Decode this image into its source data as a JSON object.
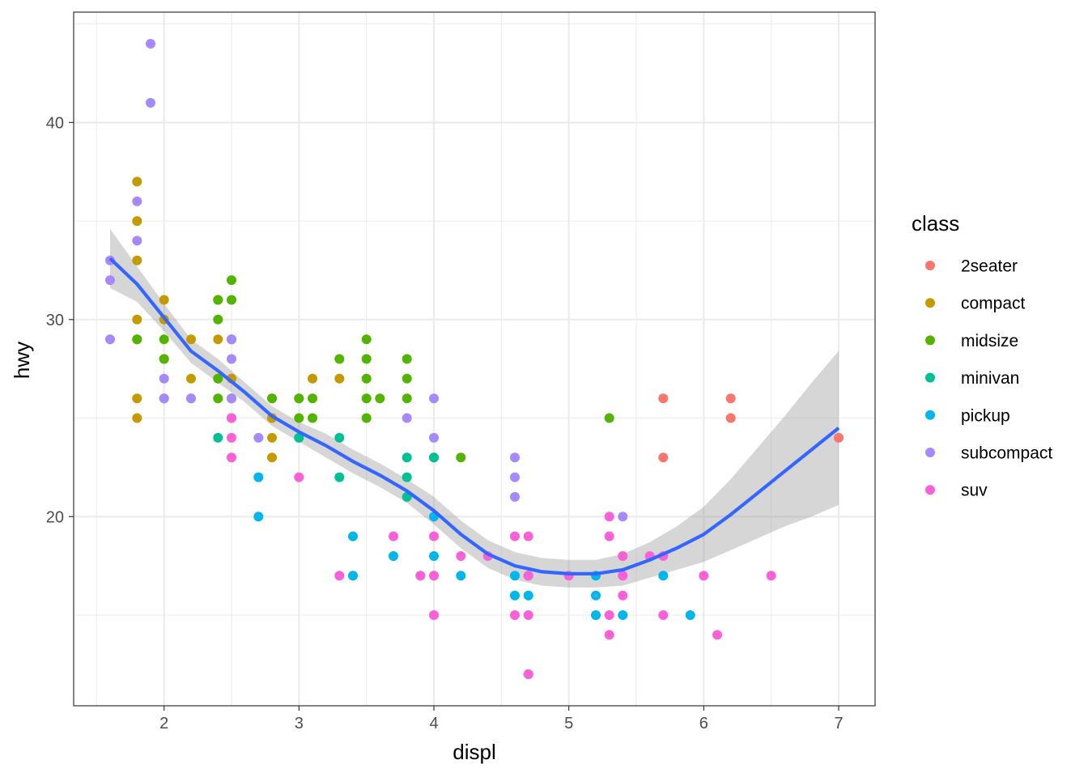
{
  "chart_data": {
    "type": "scatter",
    "xlabel": "displ",
    "ylabel": "hwy",
    "xlim": [
      1.33,
      7.27
    ],
    "ylim": [
      10.4,
      45.6
    ],
    "x_ticks": [
      2,
      3,
      4,
      5,
      6,
      7
    ],
    "y_ticks": [
      20,
      30,
      40
    ],
    "grid": true,
    "legend": {
      "title": "class",
      "position": "right",
      "entries": [
        {
          "name": "2seater",
          "color": "#F8766D"
        },
        {
          "name": "compact",
          "color": "#C49A00"
        },
        {
          "name": "midsize",
          "color": "#53B400"
        },
        {
          "name": "minivan",
          "color": "#00C094"
        },
        {
          "name": "pickup",
          "color": "#00B6EB"
        },
        {
          "name": "subcompact",
          "color": "#A58AFF"
        },
        {
          "name": "suv",
          "color": "#FB61D7"
        }
      ]
    },
    "points": [
      {
        "x": 1.8,
        "y": 37,
        "c": "compact"
      },
      {
        "x": 1.8,
        "y": 35,
        "c": "compact"
      },
      {
        "x": 1.8,
        "y": 33,
        "c": "compact"
      },
      {
        "x": 1.8,
        "y": 30,
        "c": "compact"
      },
      {
        "x": 1.8,
        "y": 29,
        "c": "compact"
      },
      {
        "x": 1.8,
        "y": 26,
        "c": "compact"
      },
      {
        "x": 1.8,
        "y": 25,
        "c": "compact"
      },
      {
        "x": 2.0,
        "y": 31,
        "c": "compact"
      },
      {
        "x": 2.0,
        "y": 30,
        "c": "compact"
      },
      {
        "x": 2.0,
        "y": 28,
        "c": "compact"
      },
      {
        "x": 2.0,
        "y": 26,
        "c": "compact"
      },
      {
        "x": 2.2,
        "y": 29,
        "c": "compact"
      },
      {
        "x": 2.2,
        "y": 27,
        "c": "compact"
      },
      {
        "x": 2.2,
        "y": 26,
        "c": "compact"
      },
      {
        "x": 2.4,
        "y": 31,
        "c": "compact"
      },
      {
        "x": 2.4,
        "y": 29,
        "c": "compact"
      },
      {
        "x": 2.4,
        "y": 27,
        "c": "compact"
      },
      {
        "x": 2.5,
        "y": 29,
        "c": "compact"
      },
      {
        "x": 2.5,
        "y": 27,
        "c": "compact"
      },
      {
        "x": 2.5,
        "y": 26,
        "c": "compact"
      },
      {
        "x": 2.5,
        "y": 25,
        "c": "compact"
      },
      {
        "x": 2.8,
        "y": 26,
        "c": "compact"
      },
      {
        "x": 2.8,
        "y": 25,
        "c": "compact"
      },
      {
        "x": 2.8,
        "y": 24,
        "c": "compact"
      },
      {
        "x": 2.8,
        "y": 23,
        "c": "compact"
      },
      {
        "x": 3.0,
        "y": 26,
        "c": "compact"
      },
      {
        "x": 3.1,
        "y": 27,
        "c": "compact"
      },
      {
        "x": 3.3,
        "y": 27,
        "c": "compact"
      },
      {
        "x": 1.8,
        "y": 29,
        "c": "midsize"
      },
      {
        "x": 2.0,
        "y": 29,
        "c": "midsize"
      },
      {
        "x": 2.0,
        "y": 28,
        "c": "midsize"
      },
      {
        "x": 2.4,
        "y": 31,
        "c": "midsize"
      },
      {
        "x": 2.4,
        "y": 30,
        "c": "midsize"
      },
      {
        "x": 2.4,
        "y": 27,
        "c": "midsize"
      },
      {
        "x": 2.4,
        "y": 26,
        "c": "midsize"
      },
      {
        "x": 2.5,
        "y": 32,
        "c": "midsize"
      },
      {
        "x": 2.5,
        "y": 31,
        "c": "midsize"
      },
      {
        "x": 2.5,
        "y": 29,
        "c": "midsize"
      },
      {
        "x": 2.5,
        "y": 26,
        "c": "midsize"
      },
      {
        "x": 2.8,
        "y": 26,
        "c": "midsize"
      },
      {
        "x": 3.0,
        "y": 26,
        "c": "midsize"
      },
      {
        "x": 3.0,
        "y": 25,
        "c": "midsize"
      },
      {
        "x": 3.1,
        "y": 26,
        "c": "midsize"
      },
      {
        "x": 3.1,
        "y": 25,
        "c": "midsize"
      },
      {
        "x": 3.3,
        "y": 28,
        "c": "midsize"
      },
      {
        "x": 3.5,
        "y": 29,
        "c": "midsize"
      },
      {
        "x": 3.5,
        "y": 28,
        "c": "midsize"
      },
      {
        "x": 3.5,
        "y": 27,
        "c": "midsize"
      },
      {
        "x": 3.5,
        "y": 26,
        "c": "midsize"
      },
      {
        "x": 3.5,
        "y": 25,
        "c": "midsize"
      },
      {
        "x": 3.6,
        "y": 26,
        "c": "midsize"
      },
      {
        "x": 3.8,
        "y": 28,
        "c": "midsize"
      },
      {
        "x": 3.8,
        "y": 27,
        "c": "midsize"
      },
      {
        "x": 3.8,
        "y": 26,
        "c": "midsize"
      },
      {
        "x": 4.0,
        "y": 23,
        "c": "midsize"
      },
      {
        "x": 4.2,
        "y": 23,
        "c": "midsize"
      },
      {
        "x": 5.3,
        "y": 25,
        "c": "midsize"
      },
      {
        "x": 2.4,
        "y": 24,
        "c": "minivan"
      },
      {
        "x": 3.0,
        "y": 24,
        "c": "minivan"
      },
      {
        "x": 3.3,
        "y": 24,
        "c": "minivan"
      },
      {
        "x": 3.3,
        "y": 22,
        "c": "minivan"
      },
      {
        "x": 3.8,
        "y": 23,
        "c": "minivan"
      },
      {
        "x": 3.8,
        "y": 22,
        "c": "minivan"
      },
      {
        "x": 3.8,
        "y": 21,
        "c": "minivan"
      },
      {
        "x": 4.0,
        "y": 23,
        "c": "minivan"
      },
      {
        "x": 2.7,
        "y": 22,
        "c": "pickup"
      },
      {
        "x": 2.7,
        "y": 20,
        "c": "pickup"
      },
      {
        "x": 3.4,
        "y": 19,
        "c": "pickup"
      },
      {
        "x": 3.4,
        "y": 17,
        "c": "pickup"
      },
      {
        "x": 3.7,
        "y": 18,
        "c": "pickup"
      },
      {
        "x": 3.9,
        "y": 17,
        "c": "pickup"
      },
      {
        "x": 4.0,
        "y": 20,
        "c": "pickup"
      },
      {
        "x": 4.0,
        "y": 18,
        "c": "pickup"
      },
      {
        "x": 4.2,
        "y": 17,
        "c": "pickup"
      },
      {
        "x": 4.6,
        "y": 17,
        "c": "pickup"
      },
      {
        "x": 4.6,
        "y": 16,
        "c": "pickup"
      },
      {
        "x": 4.7,
        "y": 17,
        "c": "pickup"
      },
      {
        "x": 4.7,
        "y": 16,
        "c": "pickup"
      },
      {
        "x": 4.7,
        "y": 12,
        "c": "pickup"
      },
      {
        "x": 5.2,
        "y": 17,
        "c": "pickup"
      },
      {
        "x": 5.2,
        "y": 16,
        "c": "pickup"
      },
      {
        "x": 5.2,
        "y": 15,
        "c": "pickup"
      },
      {
        "x": 5.4,
        "y": 15,
        "c": "pickup"
      },
      {
        "x": 5.7,
        "y": 17,
        "c": "pickup"
      },
      {
        "x": 5.9,
        "y": 15,
        "c": "pickup"
      },
      {
        "x": 1.6,
        "y": 33,
        "c": "subcompact"
      },
      {
        "x": 1.6,
        "y": 32,
        "c": "subcompact"
      },
      {
        "x": 1.6,
        "y": 29,
        "c": "subcompact"
      },
      {
        "x": 1.8,
        "y": 36,
        "c": "subcompact"
      },
      {
        "x": 1.8,
        "y": 34,
        "c": "subcompact"
      },
      {
        "x": 1.9,
        "y": 44,
        "c": "subcompact"
      },
      {
        "x": 1.9,
        "y": 41,
        "c": "subcompact"
      },
      {
        "x": 2.0,
        "y": 27,
        "c": "subcompact"
      },
      {
        "x": 2.0,
        "y": 26,
        "c": "subcompact"
      },
      {
        "x": 2.2,
        "y": 26,
        "c": "subcompact"
      },
      {
        "x": 2.5,
        "y": 29,
        "c": "subcompact"
      },
      {
        "x": 2.5,
        "y": 28,
        "c": "subcompact"
      },
      {
        "x": 2.5,
        "y": 26,
        "c": "subcompact"
      },
      {
        "x": 2.7,
        "y": 24,
        "c": "subcompact"
      },
      {
        "x": 3.8,
        "y": 25,
        "c": "subcompact"
      },
      {
        "x": 4.0,
        "y": 26,
        "c": "subcompact"
      },
      {
        "x": 4.0,
        "y": 24,
        "c": "subcompact"
      },
      {
        "x": 4.6,
        "y": 23,
        "c": "subcompact"
      },
      {
        "x": 4.6,
        "y": 22,
        "c": "subcompact"
      },
      {
        "x": 4.6,
        "y": 21,
        "c": "subcompact"
      },
      {
        "x": 5.4,
        "y": 20,
        "c": "subcompact"
      },
      {
        "x": 5.4,
        "y": 18,
        "c": "subcompact"
      },
      {
        "x": 5.4,
        "y": 17,
        "c": "subcompact"
      },
      {
        "x": 2.5,
        "y": 25,
        "c": "suv"
      },
      {
        "x": 2.5,
        "y": 24,
        "c": "suv"
      },
      {
        "x": 2.5,
        "y": 23,
        "c": "suv"
      },
      {
        "x": 3.0,
        "y": 22,
        "c": "suv"
      },
      {
        "x": 3.3,
        "y": 17,
        "c": "suv"
      },
      {
        "x": 3.7,
        "y": 19,
        "c": "suv"
      },
      {
        "x": 3.9,
        "y": 17,
        "c": "suv"
      },
      {
        "x": 4.0,
        "y": 19,
        "c": "suv"
      },
      {
        "x": 4.0,
        "y": 17,
        "c": "suv"
      },
      {
        "x": 4.0,
        "y": 15,
        "c": "suv"
      },
      {
        "x": 4.2,
        "y": 18,
        "c": "suv"
      },
      {
        "x": 4.4,
        "y": 18,
        "c": "suv"
      },
      {
        "x": 4.6,
        "y": 19,
        "c": "suv"
      },
      {
        "x": 4.6,
        "y": 15,
        "c": "suv"
      },
      {
        "x": 4.7,
        "y": 19,
        "c": "suv"
      },
      {
        "x": 4.7,
        "y": 17,
        "c": "suv"
      },
      {
        "x": 4.7,
        "y": 15,
        "c": "suv"
      },
      {
        "x": 4.7,
        "y": 12,
        "c": "suv"
      },
      {
        "x": 5.0,
        "y": 17,
        "c": "suv"
      },
      {
        "x": 5.3,
        "y": 20,
        "c": "suv"
      },
      {
        "x": 5.3,
        "y": 19,
        "c": "suv"
      },
      {
        "x": 5.3,
        "y": 15,
        "c": "suv"
      },
      {
        "x": 5.3,
        "y": 14,
        "c": "suv"
      },
      {
        "x": 5.4,
        "y": 18,
        "c": "suv"
      },
      {
        "x": 5.4,
        "y": 17,
        "c": "suv"
      },
      {
        "x": 5.4,
        "y": 16,
        "c": "suv"
      },
      {
        "x": 5.6,
        "y": 18,
        "c": "suv"
      },
      {
        "x": 5.7,
        "y": 18,
        "c": "suv"
      },
      {
        "x": 5.7,
        "y": 15,
        "c": "suv"
      },
      {
        "x": 6.0,
        "y": 17,
        "c": "suv"
      },
      {
        "x": 6.1,
        "y": 14,
        "c": "suv"
      },
      {
        "x": 6.5,
        "y": 17,
        "c": "suv"
      },
      {
        "x": 5.7,
        "y": 26,
        "c": "2seater"
      },
      {
        "x": 5.7,
        "y": 23,
        "c": "2seater"
      },
      {
        "x": 6.2,
        "y": 26,
        "c": "2seater"
      },
      {
        "x": 6.2,
        "y": 25,
        "c": "2seater"
      },
      {
        "x": 7.0,
        "y": 24,
        "c": "2seater"
      }
    ],
    "smooth": {
      "color": "#3366FF",
      "band_color": "#999999",
      "curve": [
        {
          "x": 1.6,
          "y": 33.1,
          "lo": 31.6,
          "hi": 34.6
        },
        {
          "x": 1.8,
          "y": 31.8,
          "lo": 30.9,
          "hi": 32.7
        },
        {
          "x": 2.0,
          "y": 30.1,
          "lo": 29.4,
          "hi": 30.8
        },
        {
          "x": 2.2,
          "y": 28.4,
          "lo": 27.8,
          "hi": 29.0
        },
        {
          "x": 2.4,
          "y": 27.4,
          "lo": 26.8,
          "hi": 28.0
        },
        {
          "x": 2.6,
          "y": 26.3,
          "lo": 25.8,
          "hi": 26.8
        },
        {
          "x": 2.8,
          "y": 25.1,
          "lo": 24.6,
          "hi": 25.6
        },
        {
          "x": 3.0,
          "y": 24.3,
          "lo": 23.8,
          "hi": 24.8
        },
        {
          "x": 3.2,
          "y": 23.6,
          "lo": 23.0,
          "hi": 24.2
        },
        {
          "x": 3.4,
          "y": 22.8,
          "lo": 22.2,
          "hi": 23.4
        },
        {
          "x": 3.6,
          "y": 22.1,
          "lo": 21.5,
          "hi": 22.7
        },
        {
          "x": 3.8,
          "y": 21.3,
          "lo": 20.7,
          "hi": 21.9
        },
        {
          "x": 4.0,
          "y": 20.3,
          "lo": 19.6,
          "hi": 21.0
        },
        {
          "x": 4.2,
          "y": 19.1,
          "lo": 18.4,
          "hi": 19.8
        },
        {
          "x": 4.4,
          "y": 18.1,
          "lo": 17.4,
          "hi": 18.8
        },
        {
          "x": 4.6,
          "y": 17.5,
          "lo": 16.8,
          "hi": 18.2
        },
        {
          "x": 4.8,
          "y": 17.2,
          "lo": 16.5,
          "hi": 17.9
        },
        {
          "x": 5.0,
          "y": 17.1,
          "lo": 16.4,
          "hi": 17.8
        },
        {
          "x": 5.2,
          "y": 17.1,
          "lo": 16.4,
          "hi": 17.8
        },
        {
          "x": 5.4,
          "y": 17.3,
          "lo": 16.5,
          "hi": 18.1
        },
        {
          "x": 5.6,
          "y": 17.8,
          "lo": 16.9,
          "hi": 18.7
        },
        {
          "x": 5.8,
          "y": 18.4,
          "lo": 17.3,
          "hi": 19.5
        },
        {
          "x": 6.0,
          "y": 19.1,
          "lo": 17.7,
          "hi": 20.5
        },
        {
          "x": 6.2,
          "y": 20.1,
          "lo": 18.3,
          "hi": 21.9
        },
        {
          "x": 6.4,
          "y": 21.2,
          "lo": 18.9,
          "hi": 23.5
        },
        {
          "x": 6.6,
          "y": 22.3,
          "lo": 19.5,
          "hi": 25.1
        },
        {
          "x": 6.8,
          "y": 23.4,
          "lo": 20.0,
          "hi": 26.8
        },
        {
          "x": 7.0,
          "y": 24.5,
          "lo": 20.6,
          "hi": 28.4
        }
      ]
    }
  }
}
